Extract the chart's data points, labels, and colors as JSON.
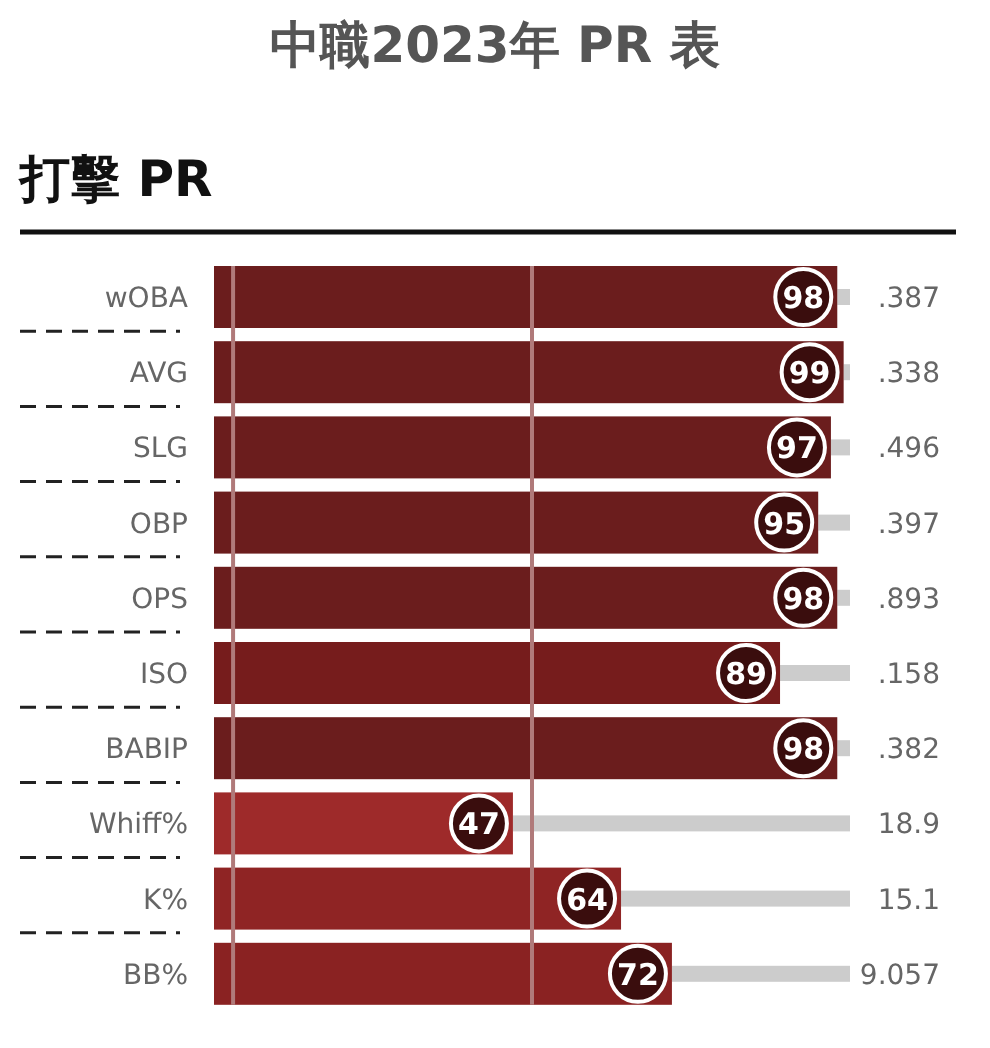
{
  "chart_data": {
    "type": "bar",
    "orientation": "horizontal",
    "stacked": true,
    "title": "中職2023年 PR 表",
    "subtitle": "打擊 PR",
    "categories": [
      "wOBA",
      "AVG",
      "SLG",
      "OBP",
      "OPS",
      "ISO",
      "BABIP",
      "Whiff%",
      "K%",
      "BB%"
    ],
    "series": [
      {
        "colors": [
          "#6b1d1d",
          "#6b1d1d",
          "#6b1d1d",
          "#6b1d1d",
          "#6b1d1d",
          "#761c1c",
          "#6b1d1d",
          "#9e2a2a",
          "#8f2424",
          "#8a2222"
        ],
        "values": [
          98,
          99,
          97,
          95,
          98,
          89,
          98,
          47,
          64,
          72
        ],
        "value_labels": [
          "98",
          "99",
          "97",
          "95",
          "98",
          "89",
          "98",
          "47",
          "64",
          "72"
        ]
      },
      {
        "color": "#cccccc",
        "values": [
          2,
          1,
          3,
          5,
          2,
          11,
          2,
          53,
          36,
          28
        ]
      }
    ],
    "xlim": [
      0,
      100
    ],
    "xticks": [
      {
        "value": 3,
        "label": null
      },
      {
        "value": 50,
        "label": null
      }
    ],
    "tick_labels": "y",
    "annotations": [
      ".387",
      ".338",
      ".496",
      ".397",
      ".893",
      ".158",
      ".382",
      "18.9",
      "15.1",
      "9.057"
    ]
  }
}
